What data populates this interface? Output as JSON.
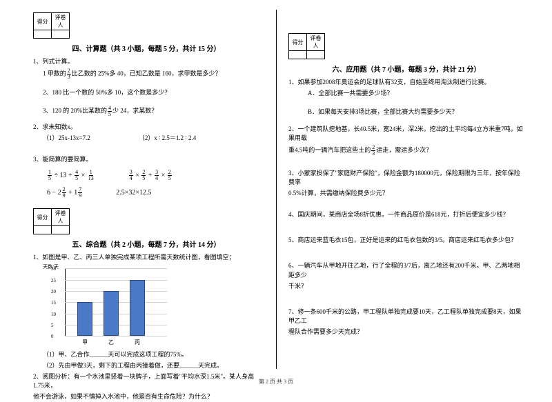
{
  "scoreHeaders": [
    "得分",
    "评卷人"
  ],
  "left": {
    "sec4": {
      "title": "四、计算题（共 3 小题，每题 5 分，共计 15 分）",
      "q1": "1、列式计算。",
      "q1a_pre": "1 甲数的",
      "q1a_post": "比乙数的 25%多 40，已知乙数是 160，求甲数是多少？",
      "q1b": "2、180 比一个数的 50%多 10，这个数是多少？",
      "q1c_pre": "3、120 的 20%比某数的",
      "q1c_post": "少 24，求某数？",
      "q2": "2、求未知数x。",
      "q2a": "（1）25x-13x=7.2",
      "q2b": "（2）x ∶ 2.5＝1.2 ∶ 2.4",
      "q3": "3、能简算的要简算。",
      "mrow1a": " ÷ 13 +  × ",
      "mrow1b": " ×  +  × ",
      "mrow2a": "6 − 2  + 1 ",
      "mrow2b": "2.5×32×12.5",
      "fr": {
        "f23n": "2",
        "f23d": "3",
        "f45n": "4",
        "f45d": "5",
        "f15n": "1",
        "f15d": "5",
        "f113n": "1",
        "f113d": "13",
        "f34n": "3",
        "f34d": "4",
        "f25n": "2",
        "f25d": "5",
        "f29n": "2",
        "f29d": "9",
        "f79n": "7",
        "f79d": "9"
      }
    },
    "sec5": {
      "title": "五、综合题（共 2 小题，每题 7 分，共计 14 分）",
      "q1": "1、如图是甲、乙、丙三人单独完成某项工程所需天数统计图，看图填空；",
      "chart": {
        "type": "bar",
        "ytitle": "天数/天",
        "yticks": [
          0,
          5,
          10,
          15,
          20,
          25,
          30
        ],
        "ymax": 30,
        "categories": [
          "甲",
          "乙",
          "丙"
        ],
        "values": [
          15,
          20,
          25
        ],
        "barColor": "#4a7ac7",
        "gridColor": "#d0d0d0"
      },
      "q1s1": "（1）甲、乙合作______天可以完成这项工程的75%。",
      "q1s2": "（2）先由甲做3天，剩下的工程由丙接着做，还要______天完成。",
      "q2a": "2、阅图分析：有一个水池里竖着一块牌子，上面写着\"平均水深1.5米\"。某人身高1.75米，",
      "q2b": "他不会游泳，如果不慎掉入水池中，他是否有生命危险？为什么？"
    }
  },
  "right": {
    "sec6": {
      "title": "六、应用题（共 7 小题，每题 3 分，共计 21 分）",
      "q1": "1、如果参加2008年奥运会的足球队有32支，自始至终用淘汰制进行比赛。",
      "q1a": "A．全部比赛一共需要多少场？",
      "q1b": "B．如果每天安排3场比赛，全部比赛大约需要多少天？",
      "q2a": "2、一个建筑队挖地基，长40.5米，宽24米，深2米。挖出的土平均每4立方米重7吨，如果用载",
      "q2b_pre": "重4.5吨的一辆汽车把这些土的",
      "q2b_post": "运走，需运多少次？",
      "q3a": "3、小蒙家投保了\"家庭财产保险\"，保险金额为180000元，保险期限为三年，按年保险费率",
      "q3b": "0.5%计算，共需缴纳保险费多少元？",
      "q4": "4、国庆期间，某商店全场8折优惠。一件商品原价是618元，打折后便宜多少钱？",
      "q5": "5、商店运来蓝毛衣15包，正好是运来的红毛衣包数的3/5。商店运来红毛衣多少包？",
      "q6a": "6、一辆汽车从甲地开往乙地，行了全程的3/7后，离乙地还有200千米。甲、乙两地相距多少",
      "q6b": "千米？",
      "q7a": "7、修一条600千米的公路，甲工程队单独完成要10天，乙工程队单独完成要8天，如果甲乙工",
      "q7b": "程队合作需要多少天完成？"
    }
  },
  "footer": "第 2 页 共 3 页"
}
